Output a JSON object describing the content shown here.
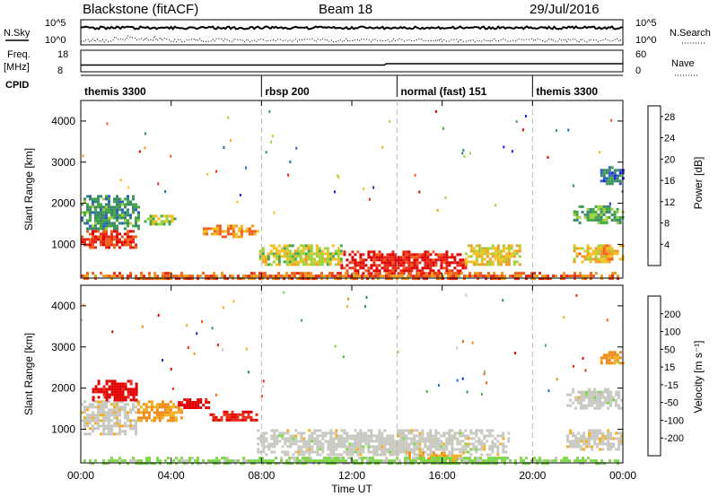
{
  "header": {
    "title": "Blackstone (fitACF)",
    "beam": "Beam 18",
    "date": "29/Jul/2016"
  },
  "status_panel": {
    "nsky_label": "N.Sky",
    "nsearch_label": "N.Search",
    "freq_label_1": "Freq.",
    "freq_label_2": "[MHz]",
    "nave_label": "Nave",
    "cpid_label": "CPID",
    "left_ticks": [
      "10^5",
      "10^0"
    ],
    "right_ticks": [
      "10^5",
      "10^0"
    ],
    "freq_ticks": [
      "18",
      "8"
    ],
    "nave_ticks": [
      "60",
      "0"
    ]
  },
  "cpid_segments": [
    {
      "label": "themis 3300",
      "start": 0.0,
      "end": 8.0
    },
    {
      "label": "rbsp 200",
      "start": 8.0,
      "end": 14.0
    },
    {
      "label": "normal (fast) 151",
      "start": 14.0,
      "end": 20.0
    },
    {
      "label": "themis 3300",
      "start": 20.0,
      "end": 24.0
    }
  ],
  "axes": {
    "xlabel": "Time UT",
    "ylabel": "Slant Range [km]",
    "x_ticks": [
      "00:00",
      "04:00",
      "08:00",
      "12:00",
      "16:00",
      "20:00",
      "00:00"
    ],
    "x_tick_hours": [
      0,
      4,
      8,
      12,
      16,
      20,
      24
    ],
    "y_ticks": [
      "1000",
      "2000",
      "3000",
      "4000"
    ],
    "y_tick_values": [
      1000,
      2000,
      3000,
      4000
    ]
  },
  "colorbars": {
    "power": {
      "label": "Power [dB]",
      "ticks": [
        "4",
        "8",
        "12",
        "16",
        "20",
        "24",
        "28"
      ],
      "colors": [
        "#1f1fe6",
        "#2a5fc0",
        "#3a8a6a",
        "#43a843",
        "#9fd23a",
        "#f2c020",
        "#f29a20",
        "#f0601a",
        "#e82818",
        "#e00000"
      ]
    },
    "velocity": {
      "label": "Velocity [m s⁻¹]",
      "ticks": [
        "200",
        "100",
        "50",
        "15",
        "-15",
        "-50",
        "-100",
        "-200"
      ],
      "colors": [
        "#1a2fd0",
        "#2a6ac0",
        "#2e8a70",
        "#46b64a",
        "#7ed84a",
        "#c8c8c0",
        "#f2b020",
        "#f08a18",
        "#f06018",
        "#e82c18",
        "#e00000"
      ]
    }
  },
  "chart_data": [
    {
      "type": "heatmap",
      "name_ref": "power",
      "x_unit": "hours UT",
      "y_unit": "km",
      "xlim": [
        0,
        24
      ],
      "ylim": [
        180,
        4500
      ],
      "colorbar_range": [
        0,
        30
      ],
      "blobs": [
        {
          "t0": 0.0,
          "t1": 2.4,
          "r0": 900,
          "r1": 1350,
          "value": 25
        },
        {
          "t0": 0.0,
          "t1": 2.6,
          "r0": 1350,
          "r1": 2200,
          "value": 9
        },
        {
          "t0": 2.8,
          "t1": 4.2,
          "r0": 1480,
          "r1": 1720,
          "value": 14
        },
        {
          "t0": 5.4,
          "t1": 7.8,
          "r0": 1200,
          "r1": 1480,
          "value": 20
        },
        {
          "t0": 7.9,
          "t1": 11.5,
          "r0": 500,
          "r1": 1000,
          "value": 15
        },
        {
          "t0": 11.5,
          "t1": 17.0,
          "r0": 300,
          "r1": 850,
          "value": 27
        },
        {
          "t0": 17.0,
          "t1": 19.5,
          "r0": 500,
          "r1": 1000,
          "value": 16
        },
        {
          "t0": 0.0,
          "t1": 24.0,
          "r0": 180,
          "r1": 330,
          "value": 22
        },
        {
          "t0": 21.8,
          "t1": 24.0,
          "r0": 1550,
          "r1": 1950,
          "value": 10
        },
        {
          "t0": 21.8,
          "t1": 24.0,
          "r0": 600,
          "r1": 1000,
          "value": 18
        },
        {
          "t0": 23.0,
          "t1": 24.0,
          "r0": 2500,
          "r1": 2900,
          "value": 6
        }
      ]
    },
    {
      "type": "heatmap",
      "name_ref": "velocity",
      "x_unit": "hours UT",
      "y_unit": "km",
      "xlim": [
        0,
        24
      ],
      "ylim": [
        180,
        4500
      ],
      "colorbar_range": [
        -200,
        200
      ],
      "blobs": [
        {
          "t0": 0.0,
          "t1": 2.5,
          "r0": 900,
          "r1": 1700,
          "value": -5
        },
        {
          "t0": 0.5,
          "t1": 2.5,
          "r0": 1700,
          "r1": 2200,
          "value": -180
        },
        {
          "t0": 2.5,
          "t1": 4.5,
          "r0": 1200,
          "r1": 1700,
          "value": -60
        },
        {
          "t0": 4.3,
          "t1": 5.7,
          "r0": 1500,
          "r1": 1750,
          "value": -180
        },
        {
          "t0": 5.7,
          "t1": 7.8,
          "r0": 1200,
          "r1": 1450,
          "value": -160
        },
        {
          "t0": 7.8,
          "t1": 19.0,
          "r0": 350,
          "r1": 1000,
          "value": 0
        },
        {
          "t0": 14.5,
          "t1": 17.0,
          "r0": 250,
          "r1": 450,
          "value": -60
        },
        {
          "t0": 0.0,
          "t1": 24.0,
          "r0": 180,
          "r1": 330,
          "value": 30
        },
        {
          "t0": 21.5,
          "t1": 24.0,
          "r0": 1500,
          "r1": 2000,
          "value": 0
        },
        {
          "t0": 21.5,
          "t1": 24.0,
          "r0": 500,
          "r1": 1000,
          "value": -5
        },
        {
          "t0": 23.0,
          "t1": 24.0,
          "r0": 2600,
          "r1": 2900,
          "value": -70
        }
      ]
    }
  ]
}
